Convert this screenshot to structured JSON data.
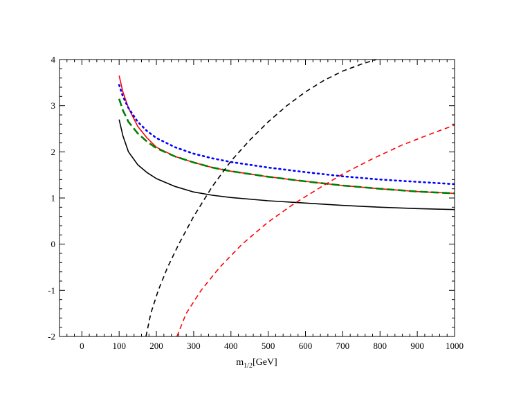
{
  "chart_data": {
    "type": "line",
    "title": "",
    "xlabel": {
      "main": "m",
      "sub": "1/2",
      "unit": "[GeV]"
    },
    "ylabel": "",
    "xlim": [
      -60,
      1000
    ],
    "ylim": [
      -2,
      4
    ],
    "x_ticks": [
      0,
      100,
      200,
      300,
      400,
      500,
      600,
      700,
      800,
      900,
      1000
    ],
    "y_ticks": [
      -2,
      -1,
      0,
      1,
      2,
      3,
      4
    ],
    "x_minor_step": 20,
    "y_minor_step": 0.2,
    "grid": false,
    "legend": "none",
    "series": [
      {
        "color": "#000000",
        "style": "solid",
        "points": [
          [
            100,
            2.7
          ],
          [
            110,
            2.35
          ],
          [
            125,
            2.0
          ],
          [
            150,
            1.72
          ],
          [
            175,
            1.55
          ],
          [
            200,
            1.42
          ],
          [
            250,
            1.25
          ],
          [
            300,
            1.13
          ],
          [
            350,
            1.06
          ],
          [
            400,
            1.01
          ],
          [
            500,
            0.94
          ],
          [
            600,
            0.89
          ],
          [
            700,
            0.84
          ],
          [
            800,
            0.8
          ],
          [
            900,
            0.77
          ],
          [
            1000,
            0.75
          ]
        ]
      },
      {
        "color": "#ff0000",
        "style": "solid",
        "points": [
          [
            100,
            3.65
          ],
          [
            110,
            3.3
          ],
          [
            125,
            2.95
          ],
          [
            150,
            2.55
          ],
          [
            175,
            2.3
          ],
          [
            200,
            2.1
          ],
          [
            250,
            1.9
          ],
          [
            300,
            1.77
          ],
          [
            350,
            1.66
          ],
          [
            400,
            1.58
          ],
          [
            500,
            1.46
          ],
          [
            600,
            1.36
          ],
          [
            700,
            1.27
          ],
          [
            800,
            1.2
          ],
          [
            900,
            1.14
          ],
          [
            1000,
            1.1
          ]
        ]
      },
      {
        "color": "#008000",
        "style": "longdash",
        "points": [
          [
            100,
            3.15
          ],
          [
            110,
            2.9
          ],
          [
            125,
            2.65
          ],
          [
            150,
            2.4
          ],
          [
            175,
            2.22
          ],
          [
            200,
            2.08
          ],
          [
            250,
            1.9
          ],
          [
            300,
            1.77
          ],
          [
            350,
            1.66
          ],
          [
            400,
            1.58
          ],
          [
            500,
            1.46
          ],
          [
            600,
            1.36
          ],
          [
            700,
            1.27
          ],
          [
            800,
            1.2
          ],
          [
            900,
            1.14
          ],
          [
            1000,
            1.1
          ]
        ]
      },
      {
        "color": "#0000ff",
        "style": "dotted",
        "points": [
          [
            100,
            3.45
          ],
          [
            110,
            3.2
          ],
          [
            125,
            2.95
          ],
          [
            150,
            2.65
          ],
          [
            175,
            2.45
          ],
          [
            200,
            2.3
          ],
          [
            250,
            2.1
          ],
          [
            300,
            1.96
          ],
          [
            350,
            1.86
          ],
          [
            400,
            1.78
          ],
          [
            500,
            1.66
          ],
          [
            600,
            1.56
          ],
          [
            700,
            1.47
          ],
          [
            800,
            1.4
          ],
          [
            900,
            1.35
          ],
          [
            1000,
            1.3
          ]
        ]
      },
      {
        "color": "#000000",
        "style": "dashed",
        "points": [
          [
            172,
            -2.0
          ],
          [
            185,
            -1.5
          ],
          [
            205,
            -1.0
          ],
          [
            230,
            -0.5
          ],
          [
            260,
            0.0
          ],
          [
            300,
            0.6
          ],
          [
            350,
            1.25
          ],
          [
            400,
            1.8
          ],
          [
            450,
            2.25
          ],
          [
            500,
            2.65
          ],
          [
            550,
            3.0
          ],
          [
            600,
            3.3
          ],
          [
            650,
            3.55
          ],
          [
            700,
            3.75
          ],
          [
            750,
            3.9
          ],
          [
            790,
            4.0
          ]
        ]
      },
      {
        "color": "#ff0000",
        "style": "dashed",
        "points": [
          [
            255,
            -2.0
          ],
          [
            280,
            -1.5
          ],
          [
            320,
            -1.0
          ],
          [
            370,
            -0.5
          ],
          [
            430,
            0.0
          ],
          [
            500,
            0.48
          ],
          [
            570,
            0.88
          ],
          [
            640,
            1.23
          ],
          [
            700,
            1.52
          ],
          [
            780,
            1.85
          ],
          [
            860,
            2.15
          ],
          [
            940,
            2.4
          ],
          [
            1000,
            2.58
          ]
        ]
      }
    ]
  }
}
